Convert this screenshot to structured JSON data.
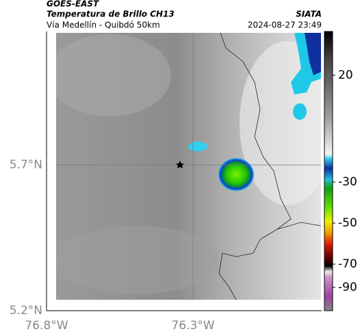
{
  "header": {
    "satellite": "GOES-EAST",
    "product": "Temperatura de Brillo CH13",
    "source": "SIATA",
    "route": "Vía Medellín - Quibdó 50km",
    "datetime": "2024-08-27 23:49"
  },
  "map": {
    "lat_labels": [
      "5.7°N",
      "5.2°N"
    ],
    "lon_labels": [
      "76.8°W",
      "76.3°W"
    ]
  },
  "colorbar": {
    "ticks": [
      20,
      -30,
      -50,
      -70,
      -90
    ]
  }
}
